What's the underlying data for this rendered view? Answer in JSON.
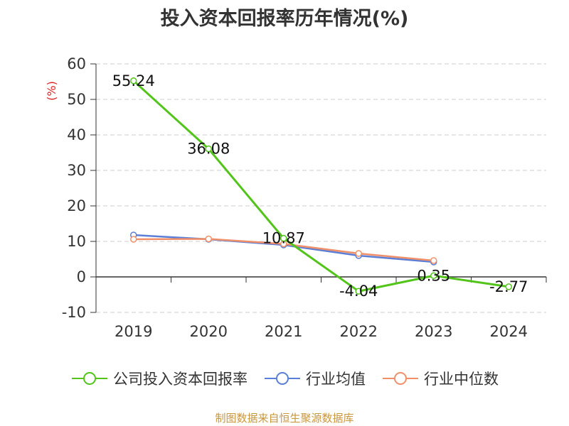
{
  "chart_data": {
    "type": "line",
    "title": "投入资本回报率历年情况(%)",
    "ylabel": "(%)",
    "categories": [
      "2019",
      "2020",
      "2021",
      "2022",
      "2023",
      "2024"
    ],
    "ylim": [
      -10,
      60
    ],
    "yticks": [
      60,
      50,
      40,
      30,
      20,
      10,
      0,
      -10
    ],
    "grid": true,
    "legend_position": "bottom",
    "series": [
      {
        "name": "公司投入资本回报率",
        "color": "#52c41a",
        "values": [
          55.24,
          36.08,
          10.87,
          -4.04,
          0.35,
          -2.77
        ],
        "show_labels": true
      },
      {
        "name": "行业均值",
        "color": "#5b7fd6",
        "values": [
          11.8,
          10.6,
          9.0,
          6.0,
          4.2,
          null
        ],
        "show_labels": false
      },
      {
        "name": "行业中位数",
        "color": "#f0906a",
        "values": [
          10.6,
          10.7,
          9.3,
          6.6,
          4.6,
          null
        ],
        "show_labels": false
      }
    ],
    "data_labels": [
      "55.24",
      "36.08",
      "10.87",
      "-4.04",
      "0.35",
      "-2.77"
    ]
  },
  "footer": {
    "source": "制图数据来自恒生聚源数据库"
  }
}
